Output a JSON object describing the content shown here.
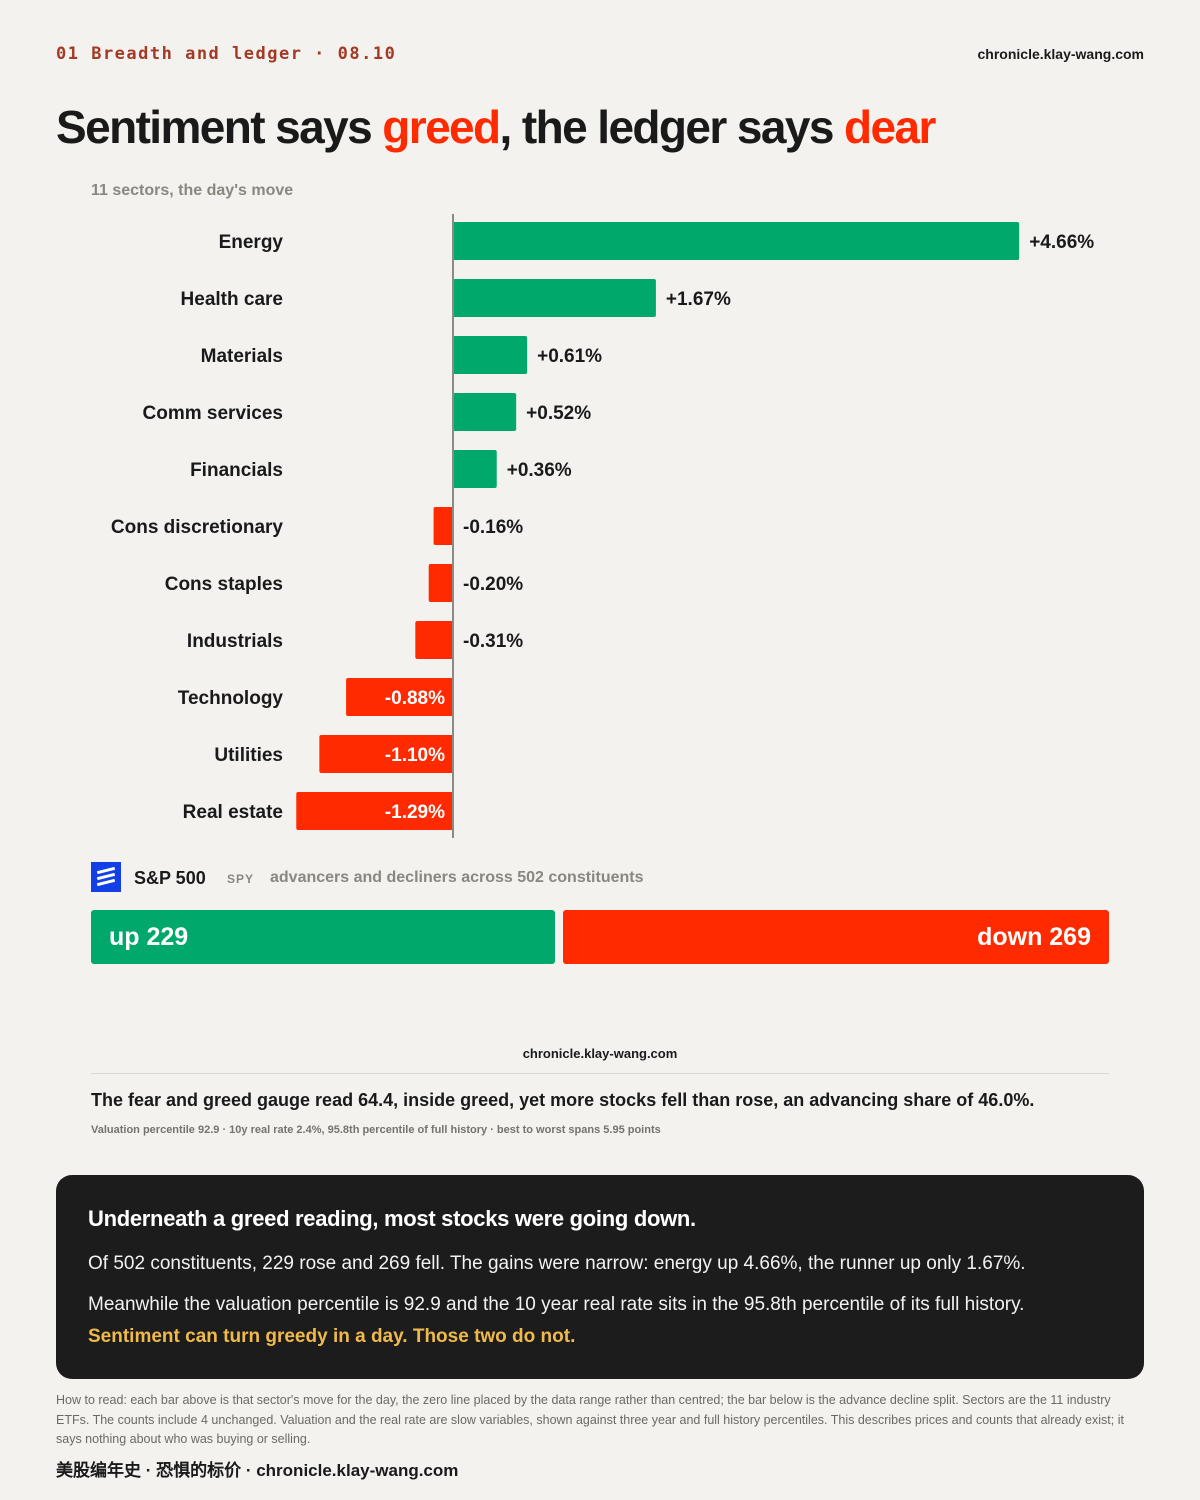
{
  "header": {
    "kicker": "01  Breadth and ledger · 08.10",
    "site": "chronicle.klay-wang.com"
  },
  "headline": {
    "part1": "Sentiment says ",
    "hl1": "greed",
    "part2": ", the ledger says ",
    "hl2": "dear"
  },
  "colors": {
    "positive": "#00a86b",
    "negative": "#ff2a00",
    "accent": "#ff2a00",
    "highlight": "#f0b94a",
    "background": "#f3f2ee",
    "dark_panel": "#1c1c1c",
    "logo_blue": "#1240e6"
  },
  "chart_data": {
    "type": "bar",
    "orientation": "horizontal",
    "subtitle": "11 sectors, the day's move",
    "categories": [
      "Energy",
      "Health care",
      "Materials",
      "Comm services",
      "Financials",
      "Cons discretionary",
      "Cons staples",
      "Industrials",
      "Technology",
      "Utilities",
      "Real estate"
    ],
    "values": [
      4.66,
      1.67,
      0.61,
      0.52,
      0.36,
      -0.16,
      -0.2,
      -0.31,
      -0.88,
      -1.1,
      -1.29
    ],
    "labels": [
      "+4.66%",
      "+1.67%",
      "+0.61%",
      "+0.52%",
      "+0.36%",
      "-0.16%",
      "-0.20%",
      "-0.31%",
      "-0.88%",
      "-1.10%",
      "-1.29%"
    ],
    "xlim": [
      -1.29,
      4.66
    ],
    "grid": false,
    "legend": "none"
  },
  "breadth": {
    "index_name": "S&P 500",
    "ticker": "SPY",
    "description": "advancers and decliners across 502 constituents",
    "up_label": "up 229",
    "down_label": "down 269",
    "up": 229,
    "down": 269,
    "unchanged": 4
  },
  "site_mid": "chronicle.klay-wang.com",
  "statement": "The fear and greed gauge read 64.4, inside greed, yet more stocks fell than rose, an advancing share of 46.0%.",
  "footnote_small": "Valuation percentile 92.9 · 10y real rate 2.4%, 95.8th percentile of full history · best to worst spans 5.95 points",
  "callout": {
    "heading": "Underneath a greed reading, most stocks were going down.",
    "p1": "Of 502 constituents, 229 rose and 269 fell. The gains were narrow: energy up 4.66%, the runner up only 1.67%.",
    "p2": "Meanwhile the valuation percentile is 92.9 and the 10 year real rate sits in the 95.8th percentile of its full history.",
    "p3": "Sentiment can turn greedy in a day. Those two do not."
  },
  "howto": "How to read: each bar above is that sector's move for the day, the zero line placed by the data range rather than centred; the bar below is the advance decline split. Sectors are the 11 industry ETFs. The counts include 4 unchanged. Valuation and the real rate are slow variables, shown against three year and full history percentiles. This describes prices and counts that already exist; it says nothing about who was buying or selling.",
  "signature": "美股编年史 · 恐惧的标价 · chronicle.klay-wang.com"
}
